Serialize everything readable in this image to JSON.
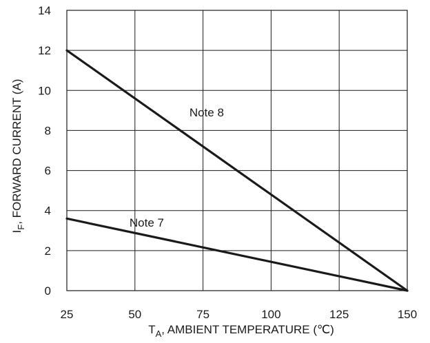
{
  "chart_data": {
    "type": "line",
    "title": "",
    "xlabel": {
      "main": "T",
      "sub": "A",
      "rest": ", AMBIENT TEMPERATURE (℃)"
    },
    "ylabel": {
      "main": "I",
      "sub": "F",
      "rest": ", FORWARD CURRENT (A)"
    },
    "xlim": [
      25,
      150
    ],
    "ylim": [
      0,
      14
    ],
    "x_ticks": [
      "25",
      "50",
      "75",
      "100",
      "125",
      "150"
    ],
    "y_ticks": [
      "0",
      "2",
      "4",
      "6",
      "8",
      "10",
      "12",
      "14"
    ],
    "grid": true,
    "series": [
      {
        "name": "Note 8",
        "x": [
          25,
          150
        ],
        "y": [
          12,
          0
        ]
      },
      {
        "name": "Note 7",
        "x": [
          25,
          150
        ],
        "y": [
          3.6,
          0
        ]
      }
    ],
    "line_color": "#1a1a1a"
  }
}
